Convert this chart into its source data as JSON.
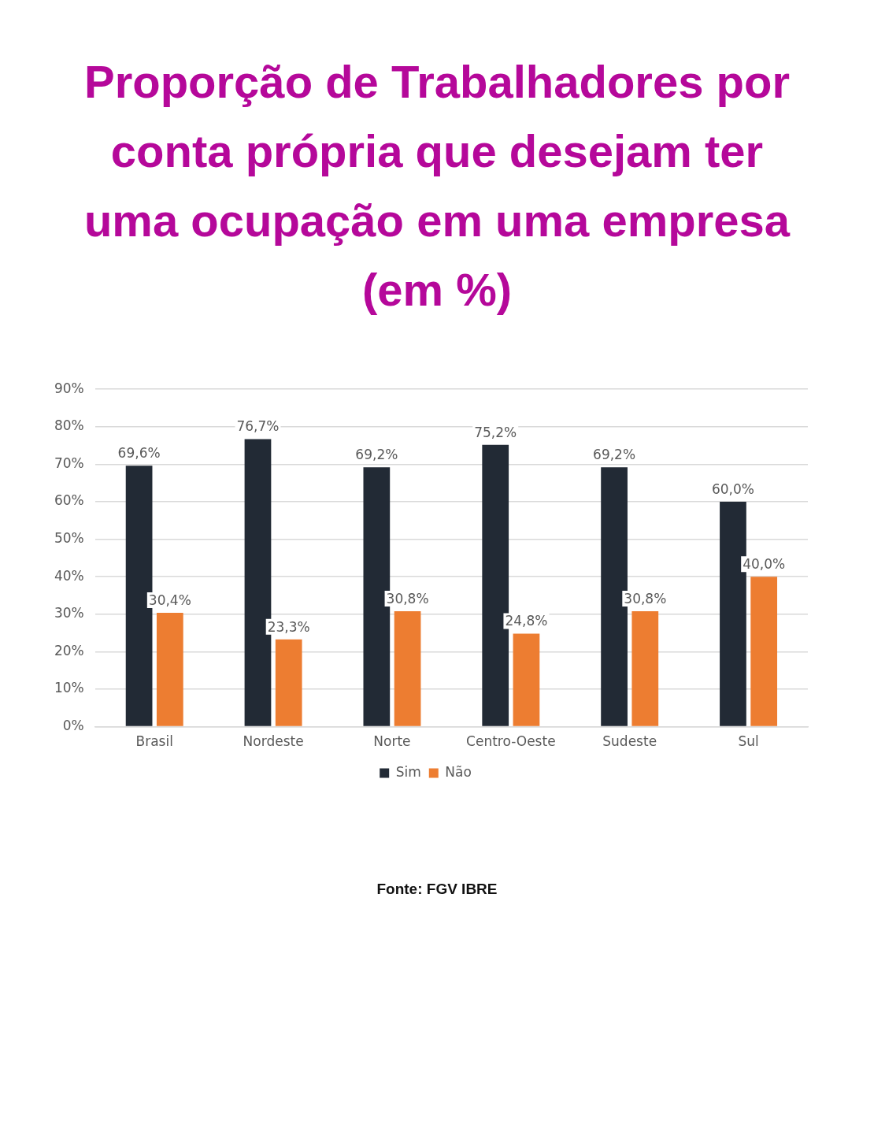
{
  "chart_data": {
    "type": "bar",
    "title": "Proporção de Trabalhadores por conta própria que desejam ter uma ocupação em uma empresa (em %)",
    "categories": [
      "Brasil",
      "Nordeste",
      "Norte",
      "Centro-Oeste",
      "Sudeste",
      "Sul"
    ],
    "series": [
      {
        "name": "Sim",
        "color": "#222a35",
        "values": [
          69.6,
          76.7,
          69.2,
          75.2,
          69.2,
          60.0
        ],
        "value_labels": [
          "69,6%",
          "76,7%",
          "69,2%",
          "75,2%",
          "69,2%",
          "60,0%"
        ]
      },
      {
        "name": "Não",
        "color": "#ed7d31",
        "values": [
          30.4,
          23.3,
          30.8,
          24.8,
          30.8,
          40.0
        ],
        "value_labels": [
          "30,4%",
          "23,3%",
          "30,8%",
          "24,8%",
          "30,8%",
          "40,0%"
        ]
      }
    ],
    "ylim": [
      0,
      90
    ],
    "yticks": [
      {
        "value": 0,
        "label": "0%"
      },
      {
        "value": 10,
        "label": "10%"
      },
      {
        "value": 20,
        "label": "20%"
      },
      {
        "value": 30,
        "label": "30%"
      },
      {
        "value": 40,
        "label": "40%"
      },
      {
        "value": 50,
        "label": "50%"
      },
      {
        "value": 60,
        "label": "60%"
      },
      {
        "value": 70,
        "label": "70%"
      },
      {
        "value": 80,
        "label": "80%"
      },
      {
        "value": 90,
        "label": "90%"
      }
    ],
    "grid": "y",
    "legend": "bottom",
    "annotations": [
      "Fonte: FGV IBRE"
    ]
  }
}
